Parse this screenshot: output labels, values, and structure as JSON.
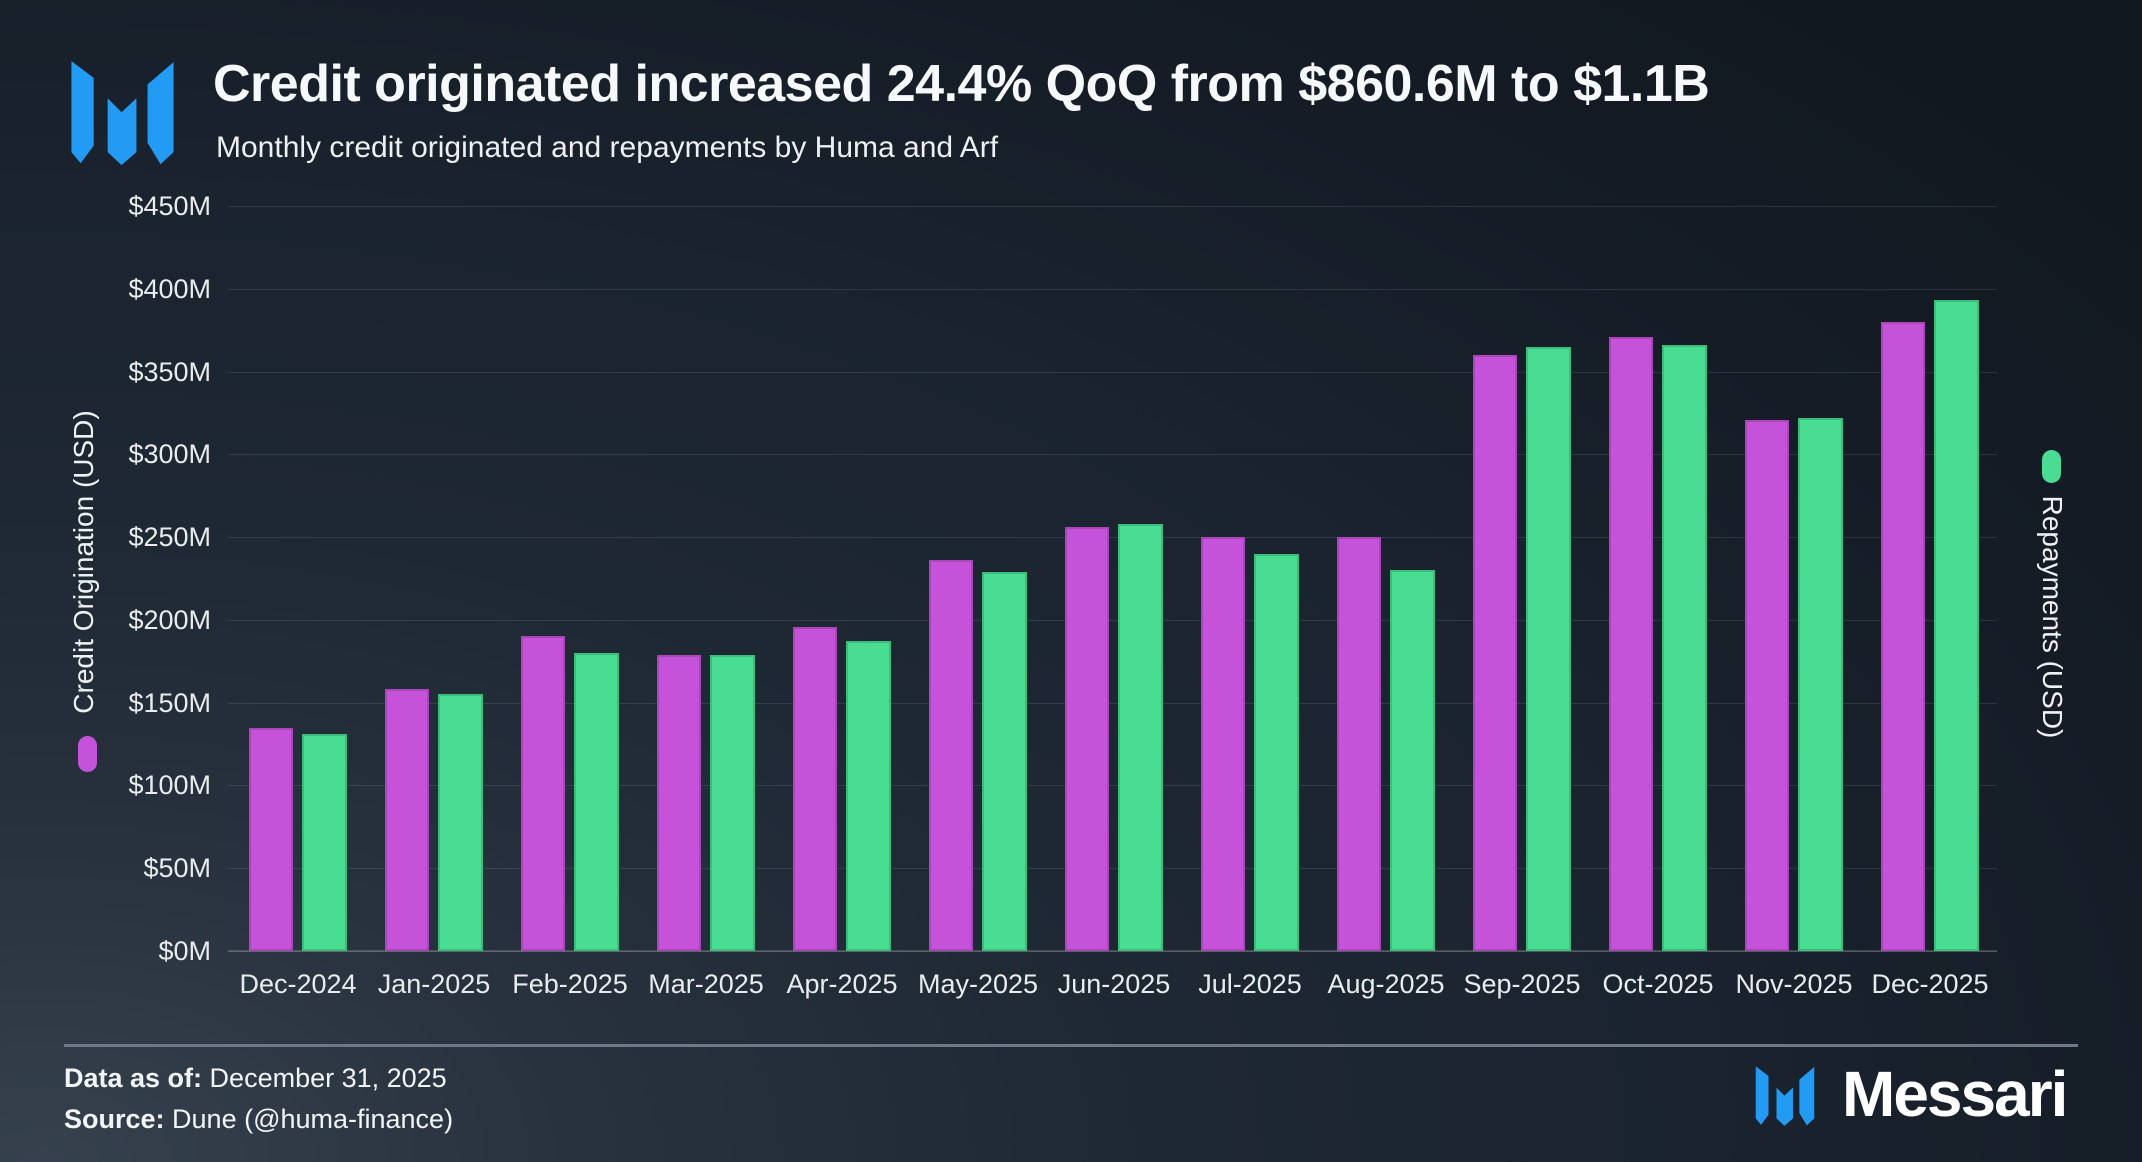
{
  "header": {
    "title": "Credit originated increased 24.4% QoQ from $860.6M to $1.1B",
    "subtitle": "Monthly credit originated and repayments by Huma and Arf"
  },
  "chart_data": {
    "type": "bar",
    "categories": [
      "Dec-2024",
      "Jan-2025",
      "Feb-2025",
      "Mar-2025",
      "Apr-2025",
      "May-2025",
      "Jun-2025",
      "Jul-2025",
      "Aug-2025",
      "Sep-2025",
      "Oct-2025",
      "Nov-2025",
      "Dec-2025"
    ],
    "series": [
      {
        "name": "Credit Origination (USD)",
        "color": "#c553d9",
        "values": [
          135,
          158,
          190,
          179,
          196,
          236,
          256,
          250,
          250,
          360,
          371,
          321,
          380
        ]
      },
      {
        "name": "Repayments (USD)",
        "color": "#48dd92",
        "values": [
          131,
          155,
          180,
          179,
          187,
          229,
          258,
          240,
          230,
          365,
          366,
          322,
          393
        ]
      }
    ],
    "units": "USD millions",
    "ylim": [
      0,
      450
    ],
    "yticks": [
      "$450M",
      "$400M",
      "$350M",
      "$300M",
      "$250M",
      "$200M",
      "$150M",
      "$100M",
      "$50M",
      "$0M"
    ],
    "left_axis_label": "Credit Origination (USD)",
    "right_axis_label": "Repayments (USD)",
    "grid": true,
    "legend_position": "axis-sides"
  },
  "footer": {
    "data_as_of_label": "Data as of:",
    "data_as_of_value": " December 31, 2025",
    "source_label": "Source:",
    "source_value": " Dune (@huma-finance)",
    "brand": "Messari"
  },
  "colors": {
    "credit_origination": "#c553d9",
    "repayments": "#48dd92",
    "brand_blue": "#219bf3",
    "background": "#1b242f",
    "gridline": "rgba(255,255,255,0.10)",
    "text": "#f2f5f7"
  }
}
